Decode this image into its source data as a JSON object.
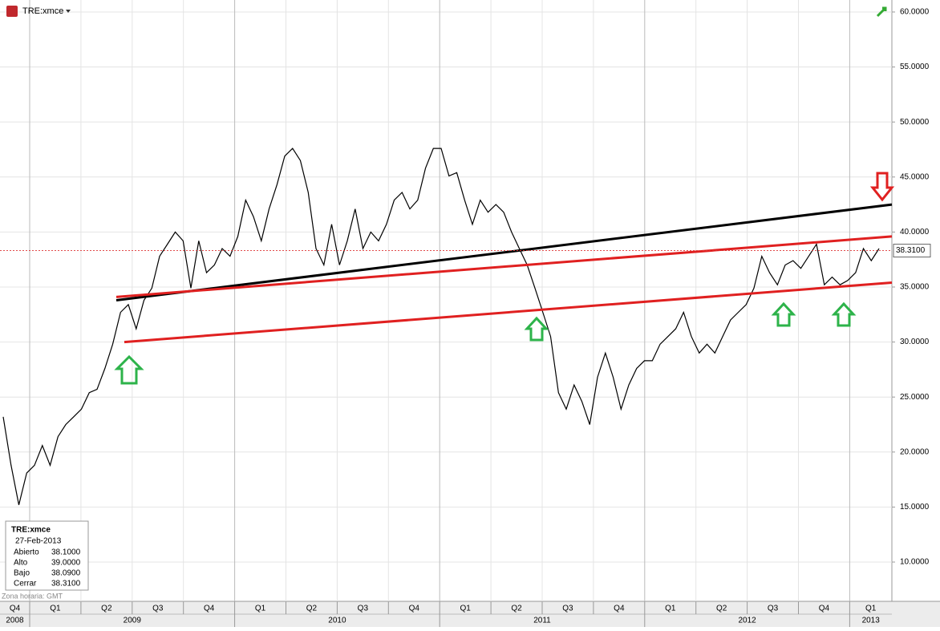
{
  "chart_data": {
    "type": "line",
    "title": "TRE:xmce",
    "timezone": "Zona horaria: GMT",
    "series": [
      {
        "name": "TRE:xmce",
        "color": "#000000",
        "values": [
          23.2,
          18.8,
          15.2,
          18.1,
          18.8,
          20.6,
          18.8,
          21.4,
          22.5,
          23.2,
          23.9,
          25.4,
          25.7,
          27.6,
          29.8,
          32.7,
          33.4,
          31.2,
          33.8,
          34.9,
          37.8,
          38.9,
          40.0,
          39.2,
          34.9,
          39.2,
          36.3,
          37.0,
          38.5,
          37.8,
          39.6,
          42.9,
          41.4,
          39.2,
          42.1,
          44.3,
          46.9,
          47.6,
          46.5,
          43.6,
          38.5,
          37.0,
          40.7,
          37.0,
          39.2,
          42.1,
          38.5,
          40.0,
          39.2,
          40.7,
          42.9,
          43.6,
          42.1,
          42.9,
          45.8,
          47.6,
          47.6,
          45.1,
          45.4,
          42.9,
          40.7,
          42.9,
          41.8,
          42.5,
          41.8,
          40.0,
          38.5,
          37.0,
          34.9,
          32.7,
          30.5,
          25.4,
          23.9,
          26.1,
          24.6,
          22.5,
          26.8,
          29.0,
          26.8,
          23.9,
          26.1,
          27.6,
          28.3,
          28.3,
          29.8,
          30.5,
          31.2,
          32.7,
          30.5,
          29.0,
          29.8,
          29.0,
          30.5,
          32.0,
          32.7,
          33.4,
          34.9,
          37.8,
          36.3,
          35.2,
          37.0,
          37.4,
          36.7,
          37.8,
          38.9,
          35.2,
          35.9,
          35.2,
          35.6,
          36.3,
          38.5,
          37.4,
          38.5
        ]
      }
    ],
    "trend_lines": [
      {
        "color": "#000000",
        "values": [
          33.8,
          42.5
        ]
      },
      {
        "color": "#e02020",
        "values": [
          34.1,
          39.6
        ]
      },
      {
        "color": "#e02020",
        "values": [
          30.0,
          35.4
        ]
      }
    ],
    "last_price": {
      "value": 38.31,
      "label": "38.3100"
    },
    "ylim": [
      6.43,
      61.09
    ],
    "yticks": [
      {
        "value": 10,
        "label": "10.0000"
      },
      {
        "value": 15,
        "label": "15.0000"
      },
      {
        "value": 20,
        "label": "20.0000"
      },
      {
        "value": 25,
        "label": "25.0000"
      },
      {
        "value": 30,
        "label": "30.0000"
      },
      {
        "value": 35,
        "label": "35.0000"
      },
      {
        "value": 40,
        "label": "40.0000"
      },
      {
        "value": 45,
        "label": "45.0000"
      },
      {
        "value": 50,
        "label": "50.0000"
      },
      {
        "value": 55,
        "label": "55.0000"
      },
      {
        "value": 60,
        "label": "60.0000"
      }
    ],
    "grid": true,
    "quarters": [
      "Q4",
      "Q1",
      "Q2",
      "Q3",
      "Q4",
      "Q1",
      "Q2",
      "Q3",
      "Q4",
      "Q1",
      "Q2",
      "Q3",
      "Q4",
      "Q1",
      "Q2",
      "Q3",
      "Q4",
      "Q1"
    ],
    "years": [
      "2008",
      "2009",
      "2010",
      "2011",
      "2012",
      "2013"
    ],
    "info_box": {
      "symbol": "TRE:xmce",
      "date": "27-Feb-2013",
      "rows": [
        [
          "Abierto",
          "38.1000"
        ],
        [
          "Alto",
          "39.0000"
        ],
        [
          "Bajo",
          "38.0900"
        ],
        [
          "Cerrar",
          "38.3100"
        ]
      ]
    }
  }
}
